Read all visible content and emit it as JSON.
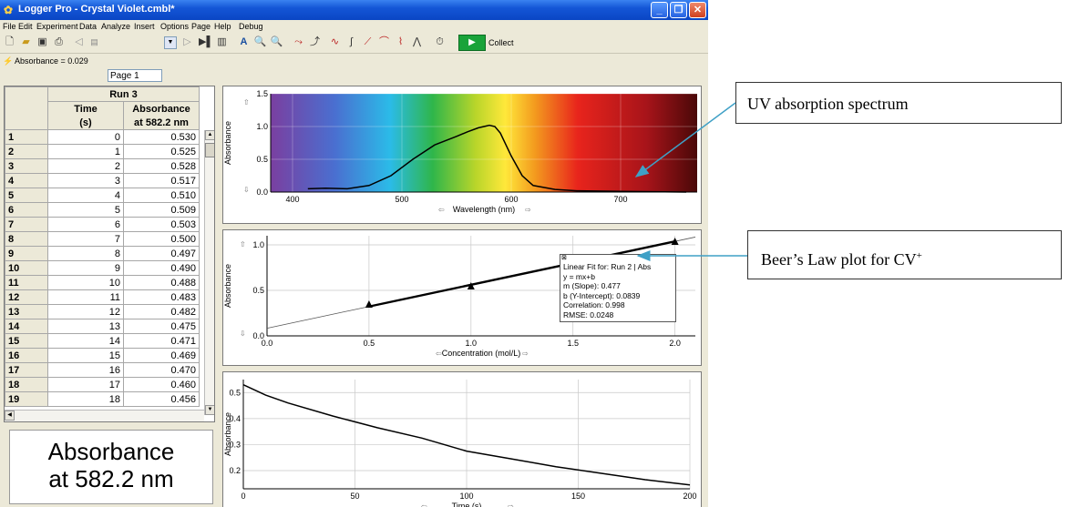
{
  "window": {
    "title": "Logger Pro - Crystal Violet.cmbl*"
  },
  "menu": [
    "File",
    "Edit",
    "Experiment",
    "Data",
    "Analyze",
    "Insert",
    "Options",
    "Page",
    "Help",
    "Debug"
  ],
  "toolbar": {
    "page_select": "Page 1",
    "collect_label": "Collect"
  },
  "status": {
    "readout": "Absorbance = 0.029"
  },
  "table": {
    "run_title": "Run 3",
    "col1": {
      "name": "Time",
      "unit": "(s)"
    },
    "col2": {
      "name": "Absorbance",
      "unit": "at 582.2 nm"
    },
    "rows": [
      {
        "n": "1",
        "t": "0",
        "a": "0.530"
      },
      {
        "n": "2",
        "t": "1",
        "a": "0.525"
      },
      {
        "n": "3",
        "t": "2",
        "a": "0.528"
      },
      {
        "n": "4",
        "t": "3",
        "a": "0.517"
      },
      {
        "n": "5",
        "t": "4",
        "a": "0.510"
      },
      {
        "n": "6",
        "t": "5",
        "a": "0.509"
      },
      {
        "n": "7",
        "t": "6",
        "a": "0.503"
      },
      {
        "n": "8",
        "t": "7",
        "a": "0.500"
      },
      {
        "n": "9",
        "t": "8",
        "a": "0.497"
      },
      {
        "n": "10",
        "t": "9",
        "a": "0.490"
      },
      {
        "n": "11",
        "t": "10",
        "a": "0.488"
      },
      {
        "n": "12",
        "t": "11",
        "a": "0.483"
      },
      {
        "n": "13",
        "t": "12",
        "a": "0.482"
      },
      {
        "n": "14",
        "t": "13",
        "a": "0.475"
      },
      {
        "n": "15",
        "t": "14",
        "a": "0.471"
      },
      {
        "n": "16",
        "t": "15",
        "a": "0.469"
      },
      {
        "n": "17",
        "t": "16",
        "a": "0.470"
      },
      {
        "n": "18",
        "t": "17",
        "a": "0.460"
      },
      {
        "n": "19",
        "t": "18",
        "a": "0.456"
      }
    ]
  },
  "meter": {
    "line1": "Absorbance",
    "line2": "at 582.2 nm"
  },
  "callouts": {
    "spectrum": "UV absorption spectrum",
    "beer_main": "Beer’s Law plot for CV",
    "beer_sup": "+"
  },
  "fit": {
    "lines": [
      "Linear Fit for: Run 2 | Abs",
      "y = mx+b",
      "m (Slope): 0.477",
      "b (Y-Intercept): 0.0839",
      "Correlation: 0.998",
      "RMSE: 0.0248"
    ]
  },
  "chart_data": [
    {
      "type": "line",
      "xlabel": "Wavelength (nm)",
      "ylabel": "Absorbance",
      "xlim": [
        380,
        770
      ],
      "ylim": [
        0,
        1.5
      ],
      "xticks": [
        400,
        500,
        600,
        700
      ],
      "yticks": [
        0.0,
        0.5,
        1.0,
        1.5
      ],
      "series": [
        {
          "x": [
            414,
            430,
            450,
            470,
            490,
            510,
            530,
            550,
            560,
            570,
            580,
            585,
            590,
            600,
            610,
            620,
            640,
            660,
            700,
            760
          ],
          "y": [
            0.05,
            0.06,
            0.05,
            0.1,
            0.25,
            0.5,
            0.72,
            0.85,
            0.92,
            0.98,
            1.02,
            1.0,
            0.9,
            0.55,
            0.25,
            0.1,
            0.04,
            0.02,
            0.01,
            0.0
          ]
        }
      ]
    },
    {
      "type": "scatter",
      "xlabel": "Concentration (mol/L)",
      "ylabel": "Absorbance",
      "xlim": [
        0,
        2.1
      ],
      "ylim": [
        0,
        1.1
      ],
      "xticks": [
        0.0,
        0.5,
        1.0,
        1.5,
        2.0
      ],
      "yticks": [
        0.0,
        0.5,
        1.0
      ],
      "series": [
        {
          "x": [
            0.5,
            1.0,
            1.5,
            2.0
          ],
          "y": [
            0.34,
            0.54,
            0.82,
            1.03
          ]
        }
      ],
      "fit": {
        "m": 0.477,
        "b": 0.0839
      }
    },
    {
      "type": "line",
      "xlabel": "Time (s)",
      "ylabel": "Absorbance",
      "xlim": [
        0,
        200
      ],
      "ylim": [
        0.13,
        0.55
      ],
      "xticks": [
        0,
        50,
        100,
        150,
        200
      ],
      "yticks": [
        0.2,
        0.3,
        0.4,
        0.5
      ],
      "series": [
        {
          "x": [
            0,
            10,
            20,
            40,
            60,
            80,
            100,
            120,
            140,
            160,
            180,
            200
          ],
          "y": [
            0.53,
            0.49,
            0.46,
            0.41,
            0.365,
            0.325,
            0.275,
            0.245,
            0.215,
            0.19,
            0.165,
            0.145
          ]
        }
      ]
    }
  ]
}
